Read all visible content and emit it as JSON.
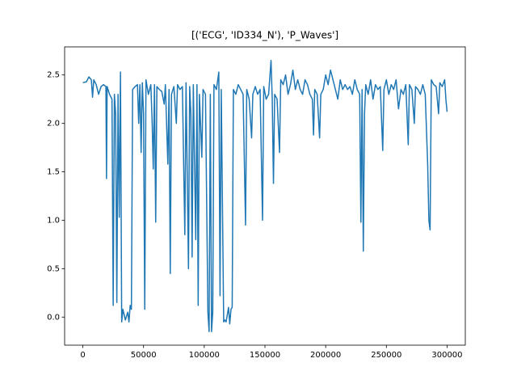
{
  "chart_data": {
    "type": "line",
    "title": "[('ECG', 'ID334_N'), 'P_Waves']",
    "x": [
      0,
      3000,
      5000,
      7000,
      8000,
      9000,
      11000,
      13000,
      15000,
      17000,
      19000,
      19500,
      20000,
      22000,
      24000,
      25000,
      26000,
      27000,
      28000,
      29000,
      30000,
      31000,
      32000,
      33000,
      35000,
      37000,
      38000,
      39000,
      40000,
      41000,
      43000,
      45000,
      46000,
      47000,
      48000,
      49000,
      50000,
      51000,
      52000,
      54000,
      56000,
      57000,
      58000,
      59000,
      60000,
      61000,
      63000,
      65000,
      67000,
      68000,
      70000,
      71000,
      72000,
      73000,
      75000,
      77000,
      78000,
      80000,
      82000,
      84000,
      85000,
      87000,
      88000,
      89000,
      90000,
      91000,
      93000,
      94000,
      95000,
      96000,
      98000,
      99000,
      101000,
      103000,
      104000,
      105000,
      106000,
      107000,
      108000,
      110000,
      112000,
      113000,
      114000,
      116000,
      117000,
      118000,
      120000,
      121000,
      122000,
      123000,
      124000,
      126000,
      128000,
      130000,
      132000,
      134000,
      135000,
      137000,
      139000,
      140000,
      142000,
      144000,
      146000,
      148000,
      149000,
      151000,
      153000,
      155000,
      156000,
      157000,
      158000,
      160000,
      162000,
      163000,
      165000,
      167000,
      169000,
      171000,
      173000,
      175000,
      177000,
      179000,
      181000,
      183000,
      185000,
      187000,
      189000,
      190000,
      191000,
      193000,
      195000,
      196000,
      198000,
      200000,
      202000,
      204000,
      206000,
      208000,
      210000,
      212000,
      214000,
      216000,
      218000,
      220000,
      222000,
      224000,
      226000,
      228000,
      229000,
      230000,
      231000,
      232000,
      233000,
      235000,
      237000,
      239000,
      241000,
      243000,
      245000,
      247000,
      248000,
      250000,
      252000,
      254000,
      256000,
      258000,
      260000,
      262000,
      264000,
      266000,
      268000,
      269000,
      271000,
      273000,
      274000,
      276000,
      278000,
      280000,
      282000,
      284000,
      285000,
      286000,
      287000,
      289000,
      291000,
      293000,
      294000,
      296000,
      298000,
      299000,
      300000
    ],
    "series": [
      {
        "color": "#1f77b4",
        "values": [
          2.42,
          2.43,
          2.48,
          2.45,
          2.27,
          2.45,
          2.4,
          2.3,
          2.38,
          2.4,
          2.38,
          1.43,
          2.38,
          2.3,
          2.25,
          0.12,
          2.3,
          2.1,
          0.15,
          2.3,
          1.03,
          2.53,
          -0.05,
          0.08,
          -0.03,
          0.05,
          -0.05,
          0.12,
          0.08,
          2.35,
          2.38,
          2.4,
          2.0,
          2.4,
          1.7,
          2.42,
          2.1,
          0.08,
          2.45,
          2.3,
          2.4,
          2.05,
          1.53,
          2.4,
          0.98,
          2.38,
          2.35,
          2.33,
          2.2,
          2.4,
          1.58,
          2.35,
          0.45,
          2.3,
          2.38,
          2.0,
          2.4,
          2.35,
          2.38,
          0.85,
          2.42,
          0.5,
          2.38,
          2.1,
          0.62,
          2.4,
          0.8,
          2.4,
          0.12,
          2.3,
          1.65,
          2.35,
          2.3,
          0.05,
          -0.15,
          2.3,
          -0.15,
          0.05,
          2.4,
          2.35,
          2.53,
          0.22,
          2.35,
          -0.05,
          -0.03,
          -0.05,
          0.1,
          -0.07,
          0.08,
          0.1,
          2.35,
          2.3,
          2.4,
          2.35,
          2.3,
          0.95,
          2.35,
          2.25,
          1.85,
          2.3,
          2.38,
          2.3,
          2.35,
          1.0,
          2.38,
          2.25,
          2.3,
          2.65,
          2.25,
          1.38,
          2.3,
          2.25,
          1.7,
          2.45,
          2.4,
          2.5,
          2.3,
          2.4,
          2.55,
          2.35,
          2.45,
          2.35,
          2.3,
          2.45,
          2.4,
          2.3,
          2.25,
          1.88,
          2.35,
          2.3,
          1.85,
          2.3,
          2.35,
          2.5,
          2.4,
          2.55,
          2.45,
          2.35,
          2.25,
          2.45,
          2.35,
          2.4,
          2.35,
          2.38,
          2.3,
          2.45,
          2.35,
          2.3,
          0.98,
          2.35,
          0.68,
          2.1,
          2.4,
          2.3,
          2.45,
          2.25,
          2.4,
          2.35,
          2.38,
          1.72,
          2.35,
          2.45,
          2.3,
          2.4,
          2.35,
          2.45,
          2.15,
          2.35,
          2.3,
          2.4,
          1.78,
          2.4,
          2.35,
          2.0,
          2.38,
          2.35,
          2.3,
          2.4,
          2.3,
          1.58,
          1.0,
          0.9,
          2.45,
          2.4,
          2.38,
          2.1,
          2.42,
          2.38,
          2.45,
          2.25,
          2.12
        ]
      }
    ],
    "xlim": [
      -15000,
      315000
    ],
    "ylim": [
      -0.29,
      2.79
    ],
    "xticks": [
      0,
      50000,
      100000,
      150000,
      200000,
      250000,
      300000
    ],
    "yticks": [
      {
        "value": 0,
        "label": "0.0"
      },
      0.5,
      {
        "value": 1,
        "label": "1.0"
      },
      1.5,
      {
        "value": 2,
        "label": "2.0"
      },
      2.5
    ]
  }
}
